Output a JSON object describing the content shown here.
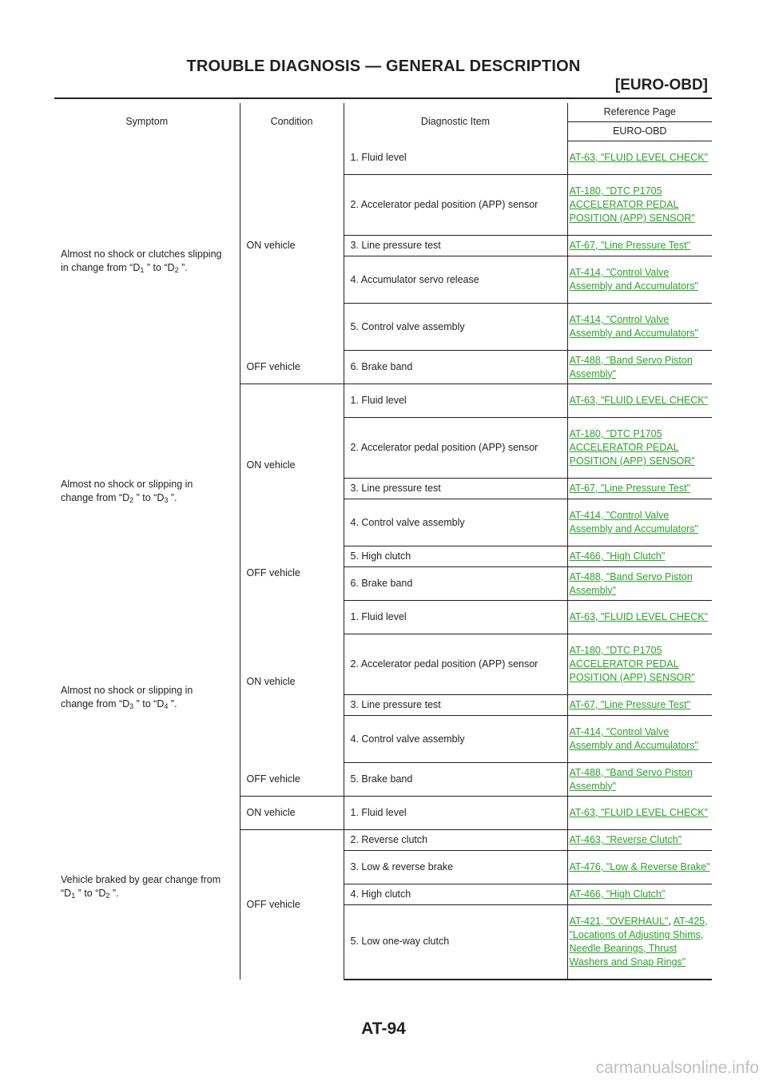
{
  "header": {
    "title": "TROUBLE DIAGNOSIS — GENERAL DESCRIPTION",
    "subtitle": "[EURO-OBD]"
  },
  "table": {
    "columns": {
      "symptom": "Symptom",
      "condition": "Condition",
      "diagnostic_item": "Diagnostic Item",
      "reference_page": "Reference Page",
      "euro_obd": "EURO-OBD"
    },
    "g1": {
      "symptom_a": "Almost no shock or clutches slipping",
      "symptom_b": "in change from “D",
      "symptom_s1": "1",
      "symptom_c": " ” to “D",
      "symptom_s2": "2",
      "symptom_d": " ”.",
      "cond_on": "ON vehicle",
      "cond_off": "OFF vehicle",
      "rows": [
        {
          "item": "1. Fluid level",
          "ref": "AT-63, \"FLUID LEVEL CHECK\""
        },
        {
          "item": "2. Accelerator pedal position (APP) sensor",
          "ref": "AT-180, \"DTC P1705 ACCELERATOR PEDAL POSITION (APP) SENSOR\""
        },
        {
          "item": "3. Line pressure test",
          "ref": "AT-67, \"Line Pressure Test\""
        },
        {
          "item": "4. Accumulator servo release",
          "ref": "AT-414, \"Control Valve Assembly and Accumulators\""
        },
        {
          "item": "5. Control valve assembly",
          "ref": "AT-414, \"Control Valve Assembly and Accumulators\""
        },
        {
          "item": "6. Brake band",
          "ref": "AT-488, \"Band Servo Piston Assembly\""
        }
      ]
    },
    "g2": {
      "symptom_a": "Almost no shock or slipping in",
      "symptom_b": "change from “D",
      "symptom_s1": "2",
      "symptom_c": " ” to “D",
      "symptom_s2": "3",
      "symptom_d": " ”.",
      "cond_on": "ON vehicle",
      "cond_off": "OFF vehicle",
      "rows": [
        {
          "item": "1. Fluid level",
          "ref": "AT-63, \"FLUID LEVEL CHECK\""
        },
        {
          "item": "2. Accelerator pedal position (APP) sensor",
          "ref": "AT-180, \"DTC P1705 ACCELERATOR PEDAL POSITION (APP) SENSOR\""
        },
        {
          "item": "3. Line pressure test",
          "ref": "AT-67, \"Line Pressure Test\""
        },
        {
          "item": "4. Control valve assembly",
          "ref": "AT-414, \"Control Valve Assembly and Accumulators\""
        },
        {
          "item": "5. High clutch",
          "ref": "AT-466, \"High Clutch\""
        },
        {
          "item": "6. Brake band",
          "ref": "AT-488, \"Band Servo Piston Assembly\""
        }
      ]
    },
    "g3": {
      "symptom_a": "Almost no shock or slipping in",
      "symptom_b": "change from “D",
      "symptom_s1": "3",
      "symptom_c": " ” to “D",
      "symptom_s2": "4",
      "symptom_d": " ”.",
      "cond_on": "ON vehicle",
      "cond_off": "OFF vehicle",
      "rows": [
        {
          "item": "1. Fluid level",
          "ref": "AT-63, \"FLUID LEVEL CHECK\""
        },
        {
          "item": "2. Accelerator pedal position (APP) sensor",
          "ref": "AT-180, \"DTC P1705 ACCELERATOR PEDAL POSITION (APP) SENSOR\""
        },
        {
          "item": "3. Line pressure test",
          "ref": "AT-67, \"Line Pressure Test\""
        },
        {
          "item": "4. Control valve assembly",
          "ref": "AT-414, \"Control Valve Assembly and Accumulators\""
        },
        {
          "item": "5. Brake band",
          "ref": "AT-488, \"Band Servo Piston Assembly\""
        }
      ]
    },
    "g4": {
      "symptom_a": "Vehicle braked by gear change from",
      "symptom_b": "“D",
      "symptom_s1": "1",
      "symptom_c": " ” to “D",
      "symptom_s2": "2",
      "symptom_d": " ”.",
      "cond_on": "ON vehicle",
      "cond_off": "OFF vehicle",
      "rows": [
        {
          "item": "1. Fluid level",
          "ref": "AT-63, \"FLUID LEVEL CHECK\""
        },
        {
          "item": "2. Reverse clutch",
          "ref": "AT-463, \"Reverse Clutch\""
        },
        {
          "item": "3. Low & reverse brake",
          "ref": "AT-476, \"Low & Reverse Brake\""
        },
        {
          "item": "4. High clutch",
          "ref": "AT-466, \"High Clutch\""
        },
        {
          "item": "5. Low one-way clutch",
          "ref": "AT-421, \"OVERHAUL\"",
          "ref_sep": ", ",
          "ref2": "AT-425, \"Locations of Adjusting Shims, Needle Bearings, Thrust Washers and Snap Rings\""
        }
      ]
    }
  },
  "footer": {
    "page_number": "AT-94",
    "watermark": "carmanualsonline.info"
  },
  "colors": {
    "text": "#231f20",
    "link": "#2aa52a",
    "watermark": "#bfbfbf"
  }
}
